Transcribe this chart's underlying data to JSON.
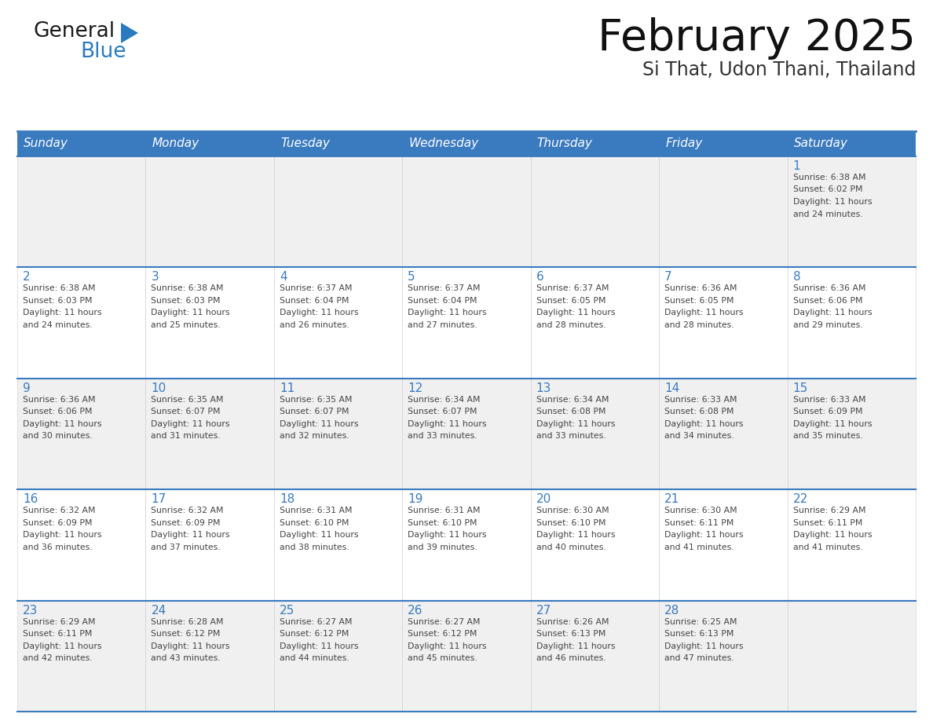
{
  "title": "February 2025",
  "subtitle": "Si That, Udon Thani, Thailand",
  "days_of_week": [
    "Sunday",
    "Monday",
    "Tuesday",
    "Wednesday",
    "Thursday",
    "Friday",
    "Saturday"
  ],
  "header_bg": "#3a7abf",
  "header_text": "#ffffff",
  "row_bg_odd": "#f0f0f0",
  "row_bg_even": "#ffffff",
  "cell_border_color": "#3a7abf",
  "cell_inner_border": "#cccccc",
  "day_number_color": "#3a7abf",
  "text_color": "#444444",
  "logo_color_general": "#1a1a1a",
  "logo_color_blue": "#2a7abf",
  "logo_triangle_color": "#2a7abf",
  "calendar_data": [
    [
      null,
      null,
      null,
      null,
      null,
      null,
      {
        "day": 1,
        "sunrise": "6:38 AM",
        "sunset": "6:02 PM",
        "daylight": "11 hours and 24 minutes."
      }
    ],
    [
      {
        "day": 2,
        "sunrise": "6:38 AM",
        "sunset": "6:03 PM",
        "daylight": "11 hours and 24 minutes."
      },
      {
        "day": 3,
        "sunrise": "6:38 AM",
        "sunset": "6:03 PM",
        "daylight": "11 hours and 25 minutes."
      },
      {
        "day": 4,
        "sunrise": "6:37 AM",
        "sunset": "6:04 PM",
        "daylight": "11 hours and 26 minutes."
      },
      {
        "day": 5,
        "sunrise": "6:37 AM",
        "sunset": "6:04 PM",
        "daylight": "11 hours and 27 minutes."
      },
      {
        "day": 6,
        "sunrise": "6:37 AM",
        "sunset": "6:05 PM",
        "daylight": "11 hours and 28 minutes."
      },
      {
        "day": 7,
        "sunrise": "6:36 AM",
        "sunset": "6:05 PM",
        "daylight": "11 hours and 28 minutes."
      },
      {
        "day": 8,
        "sunrise": "6:36 AM",
        "sunset": "6:06 PM",
        "daylight": "11 hours and 29 minutes."
      }
    ],
    [
      {
        "day": 9,
        "sunrise": "6:36 AM",
        "sunset": "6:06 PM",
        "daylight": "11 hours and 30 minutes."
      },
      {
        "day": 10,
        "sunrise": "6:35 AM",
        "sunset": "6:07 PM",
        "daylight": "11 hours and 31 minutes."
      },
      {
        "day": 11,
        "sunrise": "6:35 AM",
        "sunset": "6:07 PM",
        "daylight": "11 hours and 32 minutes."
      },
      {
        "day": 12,
        "sunrise": "6:34 AM",
        "sunset": "6:07 PM",
        "daylight": "11 hours and 33 minutes."
      },
      {
        "day": 13,
        "sunrise": "6:34 AM",
        "sunset": "6:08 PM",
        "daylight": "11 hours and 33 minutes."
      },
      {
        "day": 14,
        "sunrise": "6:33 AM",
        "sunset": "6:08 PM",
        "daylight": "11 hours and 34 minutes."
      },
      {
        "day": 15,
        "sunrise": "6:33 AM",
        "sunset": "6:09 PM",
        "daylight": "11 hours and 35 minutes."
      }
    ],
    [
      {
        "day": 16,
        "sunrise": "6:32 AM",
        "sunset": "6:09 PM",
        "daylight": "11 hours and 36 minutes."
      },
      {
        "day": 17,
        "sunrise": "6:32 AM",
        "sunset": "6:09 PM",
        "daylight": "11 hours and 37 minutes."
      },
      {
        "day": 18,
        "sunrise": "6:31 AM",
        "sunset": "6:10 PM",
        "daylight": "11 hours and 38 minutes."
      },
      {
        "day": 19,
        "sunrise": "6:31 AM",
        "sunset": "6:10 PM",
        "daylight": "11 hours and 39 minutes."
      },
      {
        "day": 20,
        "sunrise": "6:30 AM",
        "sunset": "6:10 PM",
        "daylight": "11 hours and 40 minutes."
      },
      {
        "day": 21,
        "sunrise": "6:30 AM",
        "sunset": "6:11 PM",
        "daylight": "11 hours and 41 minutes."
      },
      {
        "day": 22,
        "sunrise": "6:29 AM",
        "sunset": "6:11 PM",
        "daylight": "11 hours and 41 minutes."
      }
    ],
    [
      {
        "day": 23,
        "sunrise": "6:29 AM",
        "sunset": "6:11 PM",
        "daylight": "11 hours and 42 minutes."
      },
      {
        "day": 24,
        "sunrise": "6:28 AM",
        "sunset": "6:12 PM",
        "daylight": "11 hours and 43 minutes."
      },
      {
        "day": 25,
        "sunrise": "6:27 AM",
        "sunset": "6:12 PM",
        "daylight": "11 hours and 44 minutes."
      },
      {
        "day": 26,
        "sunrise": "6:27 AM",
        "sunset": "6:12 PM",
        "daylight": "11 hours and 45 minutes."
      },
      {
        "day": 27,
        "sunrise": "6:26 AM",
        "sunset": "6:13 PM",
        "daylight": "11 hours and 46 minutes."
      },
      {
        "day": 28,
        "sunrise": "6:25 AM",
        "sunset": "6:13 PM",
        "daylight": "11 hours and 47 minutes."
      },
      null
    ]
  ]
}
